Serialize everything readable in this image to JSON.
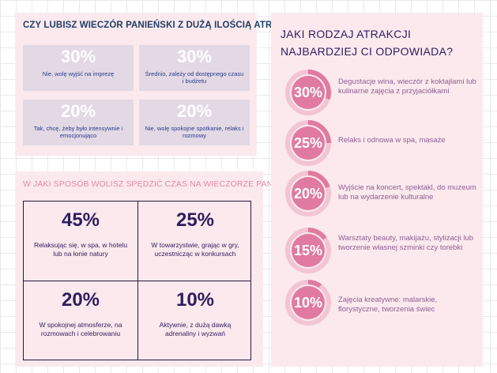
{
  "panel1": {
    "title": "CZY LUBISZ WIECZÓR PANIEŃSKI Z DUŻĄ ILOŚCIĄ ATRAKCJI?",
    "cards": [
      {
        "percent": "30%",
        "value": 30,
        "text": "Nie, wolę wyjść na imprezę"
      },
      {
        "percent": "30%",
        "value": 30,
        "text": "Średnio, zależy od dostępnego czasu i budżetu"
      },
      {
        "percent": "20%",
        "value": 20,
        "text": "Tak, chcę, żeby było intensywnie i emocjonująco"
      },
      {
        "percent": "20%",
        "value": 20,
        "text": "Nie, wolę spokojne spotkanie, relaks i rozmowy"
      }
    ]
  },
  "panel2": {
    "title": "W JAKI SPOSÓB WOLISZ SPĘDZIĆ CZAS NA WIECZORZE PANIEŃSKIM?",
    "cells": [
      {
        "percent": "45%",
        "value": 45,
        "text": "Relaksując się, w spa, w hotelu lub na łonie natury"
      },
      {
        "percent": "25%",
        "value": 25,
        "text": "W towarzystwie, grając w gry, uczestnicząc w konkursach"
      },
      {
        "percent": "20%",
        "value": 20,
        "text": "W spokojnej atmosferze, na rozmowach i celebrowaniu"
      },
      {
        "percent": "10%",
        "value": 10,
        "text": "Aktywnie, z dużą dawką adrenaliny i wyzwań"
      }
    ]
  },
  "panel3": {
    "title": "JAKI RODZAJ ATRAKCJI NAJBARDZIEJ CI ODPOWIADA?",
    "items": [
      {
        "percent": "30%",
        "value": 30,
        "text": "Degustacje wina, wieczór z koktajlami lub kulinarne zajęcia z przyjaciółkami"
      },
      {
        "percent": "25%",
        "value": 25,
        "text": "Relaks i odnowa w spa, masaże"
      },
      {
        "percent": "20%",
        "value": 20,
        "text": "Wyjście na koncert, spektakl, do muzeum lub na wydarzenie kulturalne"
      },
      {
        "percent": "15%",
        "value": 15,
        "text": "Warsztaty beauty, makijażu, stylizacji lub tworzenie własnej szminki czy torebki"
      },
      {
        "percent": "10%",
        "value": 10,
        "text": "Zajęcia kreatywne: malarskie, florystyczne, tworzenia świec"
      }
    ]
  },
  "colors": {
    "panel_bg": "#fbe9ee",
    "card_bg": "#e2d9e5",
    "ring_fill": "#e07aa0",
    "ring_track": "#f2c4d4",
    "navy": "#1f3f66",
    "purple": "#2e1d5e",
    "pink_text": "#e38aa5",
    "mauve_text": "#8e5f93"
  }
}
